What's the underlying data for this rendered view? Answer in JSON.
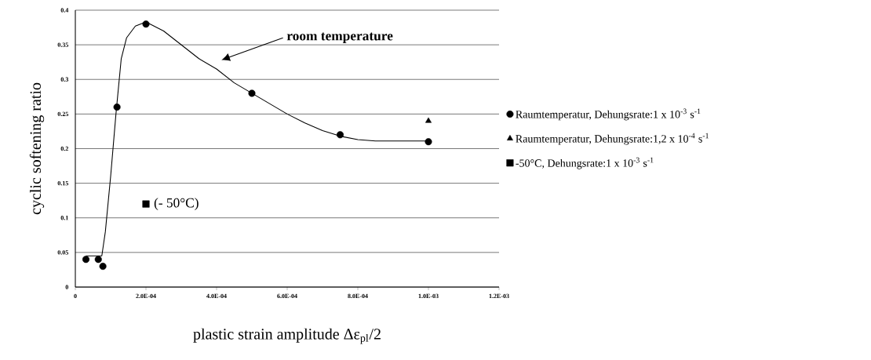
{
  "chart_data": {
    "type": "scatter",
    "xlabel": "plastic strain amplitude Δε$_{pl}$/2",
    "ylabel": "cyclic softening ratio",
    "xlim": [
      0,
      0.0012
    ],
    "xticks": [
      0,
      {
        "value": 0.0002,
        "label": "2.0E-04"
      },
      {
        "value": 0.0004,
        "label": "4.0E-04"
      },
      {
        "value": 0.0006,
        "label": "6.0E-04"
      },
      {
        "value": 0.0008,
        "label": "8.0E-04"
      },
      {
        "value": 0.001,
        "label": "1.0E-03"
      },
      {
        "value": 0.0012,
        "label": "1.2E-03"
      }
    ],
    "ylim": [
      0,
      0.4
    ],
    "yticks": [
      0,
      0.05,
      0.1,
      0.15,
      0.2,
      0.25,
      0.3,
      0.35,
      0.4
    ],
    "grid": "y",
    "legend": "right",
    "series": [
      {
        "name": "Raumtemperatur, Dehungsrate:1 x 10$^{-3}$ s$^{-1}$",
        "color": "#000000",
        "marker": "circle",
        "x": [
          3e-05,
          6.5e-05,
          7.8e-05,
          0.000118,
          0.0002,
          0.0005,
          0.00075,
          0.001
        ],
        "values": [
          0.04,
          0.04,
          0.03,
          0.26,
          0.38,
          0.28,
          0.22,
          0.21
        ]
      },
      {
        "name": "Raumtemperatur, Dehungsrate:1,2 x 10$^{-4}$ s$^{-1}$",
        "color": "#000000",
        "marker": "triangle",
        "x": [
          0.001
        ],
        "values": [
          0.24
        ]
      },
      {
        "name": "-50°C, Dehungsrate:1 x 10$^{-3}$ s$^{-1}$",
        "color": "#000000",
        "marker": "square",
        "x": [
          0.0002
        ],
        "values": [
          0.12
        ]
      },
      {
        "type": "line",
        "color": "#000000",
        "marker": "none",
        "x": [
          3e-05,
          7.5e-05,
          8.5e-05,
          0.0001,
          0.000115,
          0.00013,
          0.000145,
          0.00017,
          0.0002,
          0.00025,
          0.0003,
          0.00035,
          0.0004,
          0.00045,
          0.0005,
          0.00055,
          0.0006,
          0.00065,
          0.0007,
          0.00075,
          0.0008,
          0.00085,
          0.001
        ],
        "values": [
          0.045,
          0.045,
          0.08,
          0.16,
          0.25,
          0.33,
          0.36,
          0.377,
          0.383,
          0.37,
          0.35,
          0.33,
          0.315,
          0.295,
          0.28,
          0.265,
          0.25,
          0.237,
          0.226,
          0.218,
          0.213,
          0.211,
          0.211
        ]
      }
    ],
    "annotations": [
      "room temperature",
      {
        "text": "(- 50°C)",
        "x": 0.0002,
        "y": 0.12
      }
    ]
  }
}
